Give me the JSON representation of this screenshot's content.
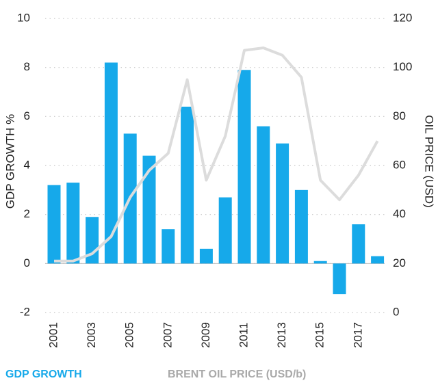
{
  "chart_data": {
    "type": "bar",
    "categories": [
      "2001",
      null,
      "2003",
      null,
      "2005",
      null,
      "2007",
      null,
      "2009",
      null,
      "2011",
      null,
      "2013",
      null,
      "2015",
      null,
      "2017",
      null
    ],
    "series": [
      {
        "name": "GDP GROWTH",
        "type": "bar",
        "color": "#16a9ea",
        "values": [
          3.2,
          3.3,
          1.9,
          8.2,
          5.3,
          4.4,
          1.4,
          6.4,
          0.6,
          2.7,
          7.9,
          5.6,
          4.9,
          3.0,
          0.1,
          -1.25,
          1.6,
          0.3
        ]
      },
      {
        "name": "BRENT OIL PRICE (USD/b)",
        "type": "line",
        "axis": "y2",
        "color": "#dcdcdc",
        "values": [
          21,
          21,
          24,
          31,
          47,
          58,
          65,
          95,
          54,
          72,
          107,
          108,
          105,
          96,
          54,
          46,
          56,
          70
        ]
      }
    ],
    "ylabel": "GDP GROWTH %",
    "y2label": "OIL PRICE (USD)",
    "ylim": [
      -2,
      10
    ],
    "yticks": [
      -2,
      0,
      2,
      4,
      6,
      8,
      10
    ],
    "y2lim": [
      0,
      120
    ],
    "y2ticks": [
      0,
      20,
      40,
      60,
      80,
      100,
      120
    ],
    "grid": true
  }
}
